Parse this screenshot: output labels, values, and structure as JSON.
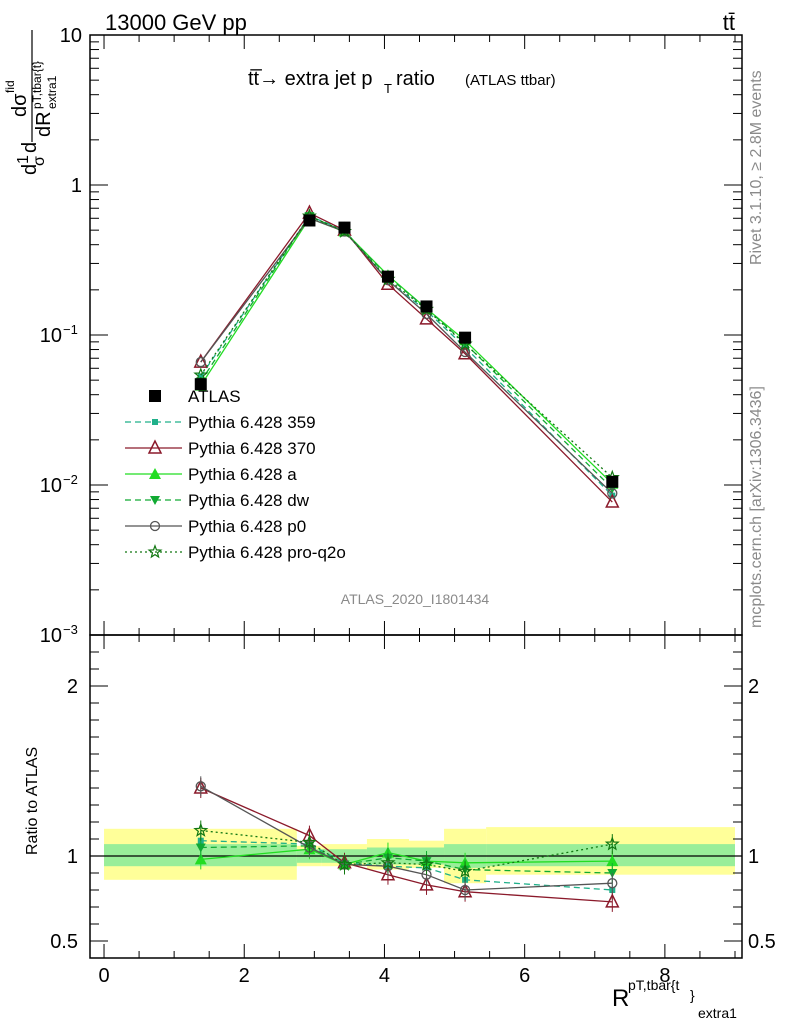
{
  "header": {
    "energy_label": "13000 GeV pp",
    "process_label": "tt̄"
  },
  "side_labels": {
    "rivet": "Rivet 3.1.10, ≥ 2.8M events",
    "mcplots": "mcplots.cern.ch [arXiv:1306.3436]"
  },
  "watermark": "ATLAS_2020_I1801434",
  "chart_data": [
    {
      "type": "line",
      "panel": "main",
      "title": "tt̅→ extra jet pT ratio",
      "title_suffix": "(ATLAS ttbar)",
      "y_scale": "log",
      "ylim": [
        0.001,
        10
      ],
      "ylabel": "1/σ dσfid / dR^{pT,tbar{t}}_{extra1}",
      "yticks": [
        "10^-3",
        "10^-2",
        "10^-1",
        "1",
        "10"
      ],
      "x": [
        1.38,
        2.93,
        3.43,
        4.05,
        4.6,
        5.15,
        7.25
      ],
      "data_series": {
        "name": "ATLAS",
        "values": [
          0.047,
          0.58,
          0.52,
          0.245,
          0.155,
          0.096,
          0.0105
        ]
      },
      "series": [
        {
          "name": "Pythia 6.428 359",
          "color": "#20b08a",
          "style": "dashed",
          "marker": "square-small",
          "values": [
            0.053,
            0.62,
            0.5,
            0.23,
            0.145,
            0.083,
            0.0085
          ]
        },
        {
          "name": "Pythia 6.428 370",
          "color": "#8b1a2b",
          "style": "solid",
          "marker": "triangle-open",
          "values": [
            0.066,
            0.65,
            0.5,
            0.218,
            0.128,
            0.075,
            0.0077
          ]
        },
        {
          "name": "Pythia 6.428 a",
          "color": "#22dd22",
          "style": "solid",
          "marker": "triangle-filled",
          "values": [
            0.046,
            0.6,
            0.49,
            0.25,
            0.15,
            0.092,
            0.0102
          ]
        },
        {
          "name": "Pythia 6.428 dw",
          "color": "#11aa33",
          "style": "dashed",
          "marker": "triangle-down",
          "values": [
            0.049,
            0.62,
            0.49,
            0.245,
            0.15,
            0.088,
            0.0095
          ]
        },
        {
          "name": "Pythia 6.428 p0",
          "color": "#555555",
          "style": "solid",
          "marker": "circle-open",
          "values": [
            0.066,
            0.6,
            0.49,
            0.232,
            0.138,
            0.077,
            0.0088
          ]
        },
        {
          "name": "Pythia 6.428 pro-q2o",
          "color": "#117711",
          "style": "dotted",
          "marker": "star-open",
          "values": [
            0.054,
            0.62,
            0.49,
            0.235,
            0.148,
            0.087,
            0.0112
          ]
        }
      ]
    },
    {
      "type": "line",
      "panel": "ratio",
      "xlabel": "R^{pT,tbar{t}}_{extra1}",
      "ylabel": "Ratio to ATLAS",
      "xlim": [
        -0.2,
        9.1
      ],
      "xticks": [
        0,
        2,
        4,
        6,
        8
      ],
      "ylim": [
        0.4,
        2.3
      ],
      "yticks": [
        0.5,
        1,
        2
      ],
      "x": [
        1.38,
        2.93,
        3.43,
        4.05,
        4.6,
        5.15,
        7.25
      ],
      "bands": [
        {
          "x0": 0.0,
          "x1": 2.75,
          "stat": [
            0.94,
            1.07
          ],
          "total": [
            0.86,
            1.16
          ]
        },
        {
          "x0": 2.75,
          "x1": 3.1,
          "stat": [
            0.96,
            1.04
          ],
          "total": [
            0.94,
            1.06
          ]
        },
        {
          "x0": 3.1,
          "x1": 3.75,
          "stat": [
            0.96,
            1.04
          ],
          "total": [
            0.94,
            1.07
          ]
        },
        {
          "x0": 3.75,
          "x1": 4.35,
          "stat": [
            0.95,
            1.05
          ],
          "total": [
            0.92,
            1.1
          ]
        },
        {
          "x0": 4.35,
          "x1": 4.85,
          "stat": [
            0.95,
            1.05
          ],
          "total": [
            0.93,
            1.09
          ]
        },
        {
          "x0": 4.85,
          "x1": 5.45,
          "stat": [
            0.93,
            1.07
          ],
          "total": [
            0.84,
            1.16
          ]
        },
        {
          "x0": 5.45,
          "x1": 9.0,
          "stat": [
            0.94,
            1.07
          ],
          "total": [
            0.89,
            1.17
          ]
        }
      ],
      "series": [
        {
          "name": "Pythia 6.428 359",
          "values": [
            1.09,
            1.07,
            0.96,
            0.94,
            0.93,
            0.86,
            0.8
          ]
        },
        {
          "name": "Pythia 6.428 370",
          "values": [
            1.4,
            1.12,
            0.96,
            0.89,
            0.83,
            0.79,
            0.73
          ]
        },
        {
          "name": "Pythia 6.428 a",
          "values": [
            0.98,
            1.04,
            0.95,
            1.02,
            0.97,
            0.96,
            0.97
          ]
        },
        {
          "name": "Pythia 6.428 dw",
          "values": [
            1.05,
            1.06,
            0.95,
            0.99,
            0.97,
            0.92,
            0.9
          ]
        },
        {
          "name": "Pythia 6.428 p0",
          "values": [
            1.41,
            1.05,
            0.95,
            0.94,
            0.89,
            0.8,
            0.84
          ]
        },
        {
          "name": "Pythia 6.428 pro-q2o",
          "values": [
            1.15,
            1.08,
            0.95,
            0.96,
            0.95,
            0.91,
            1.07
          ]
        }
      ]
    }
  ]
}
